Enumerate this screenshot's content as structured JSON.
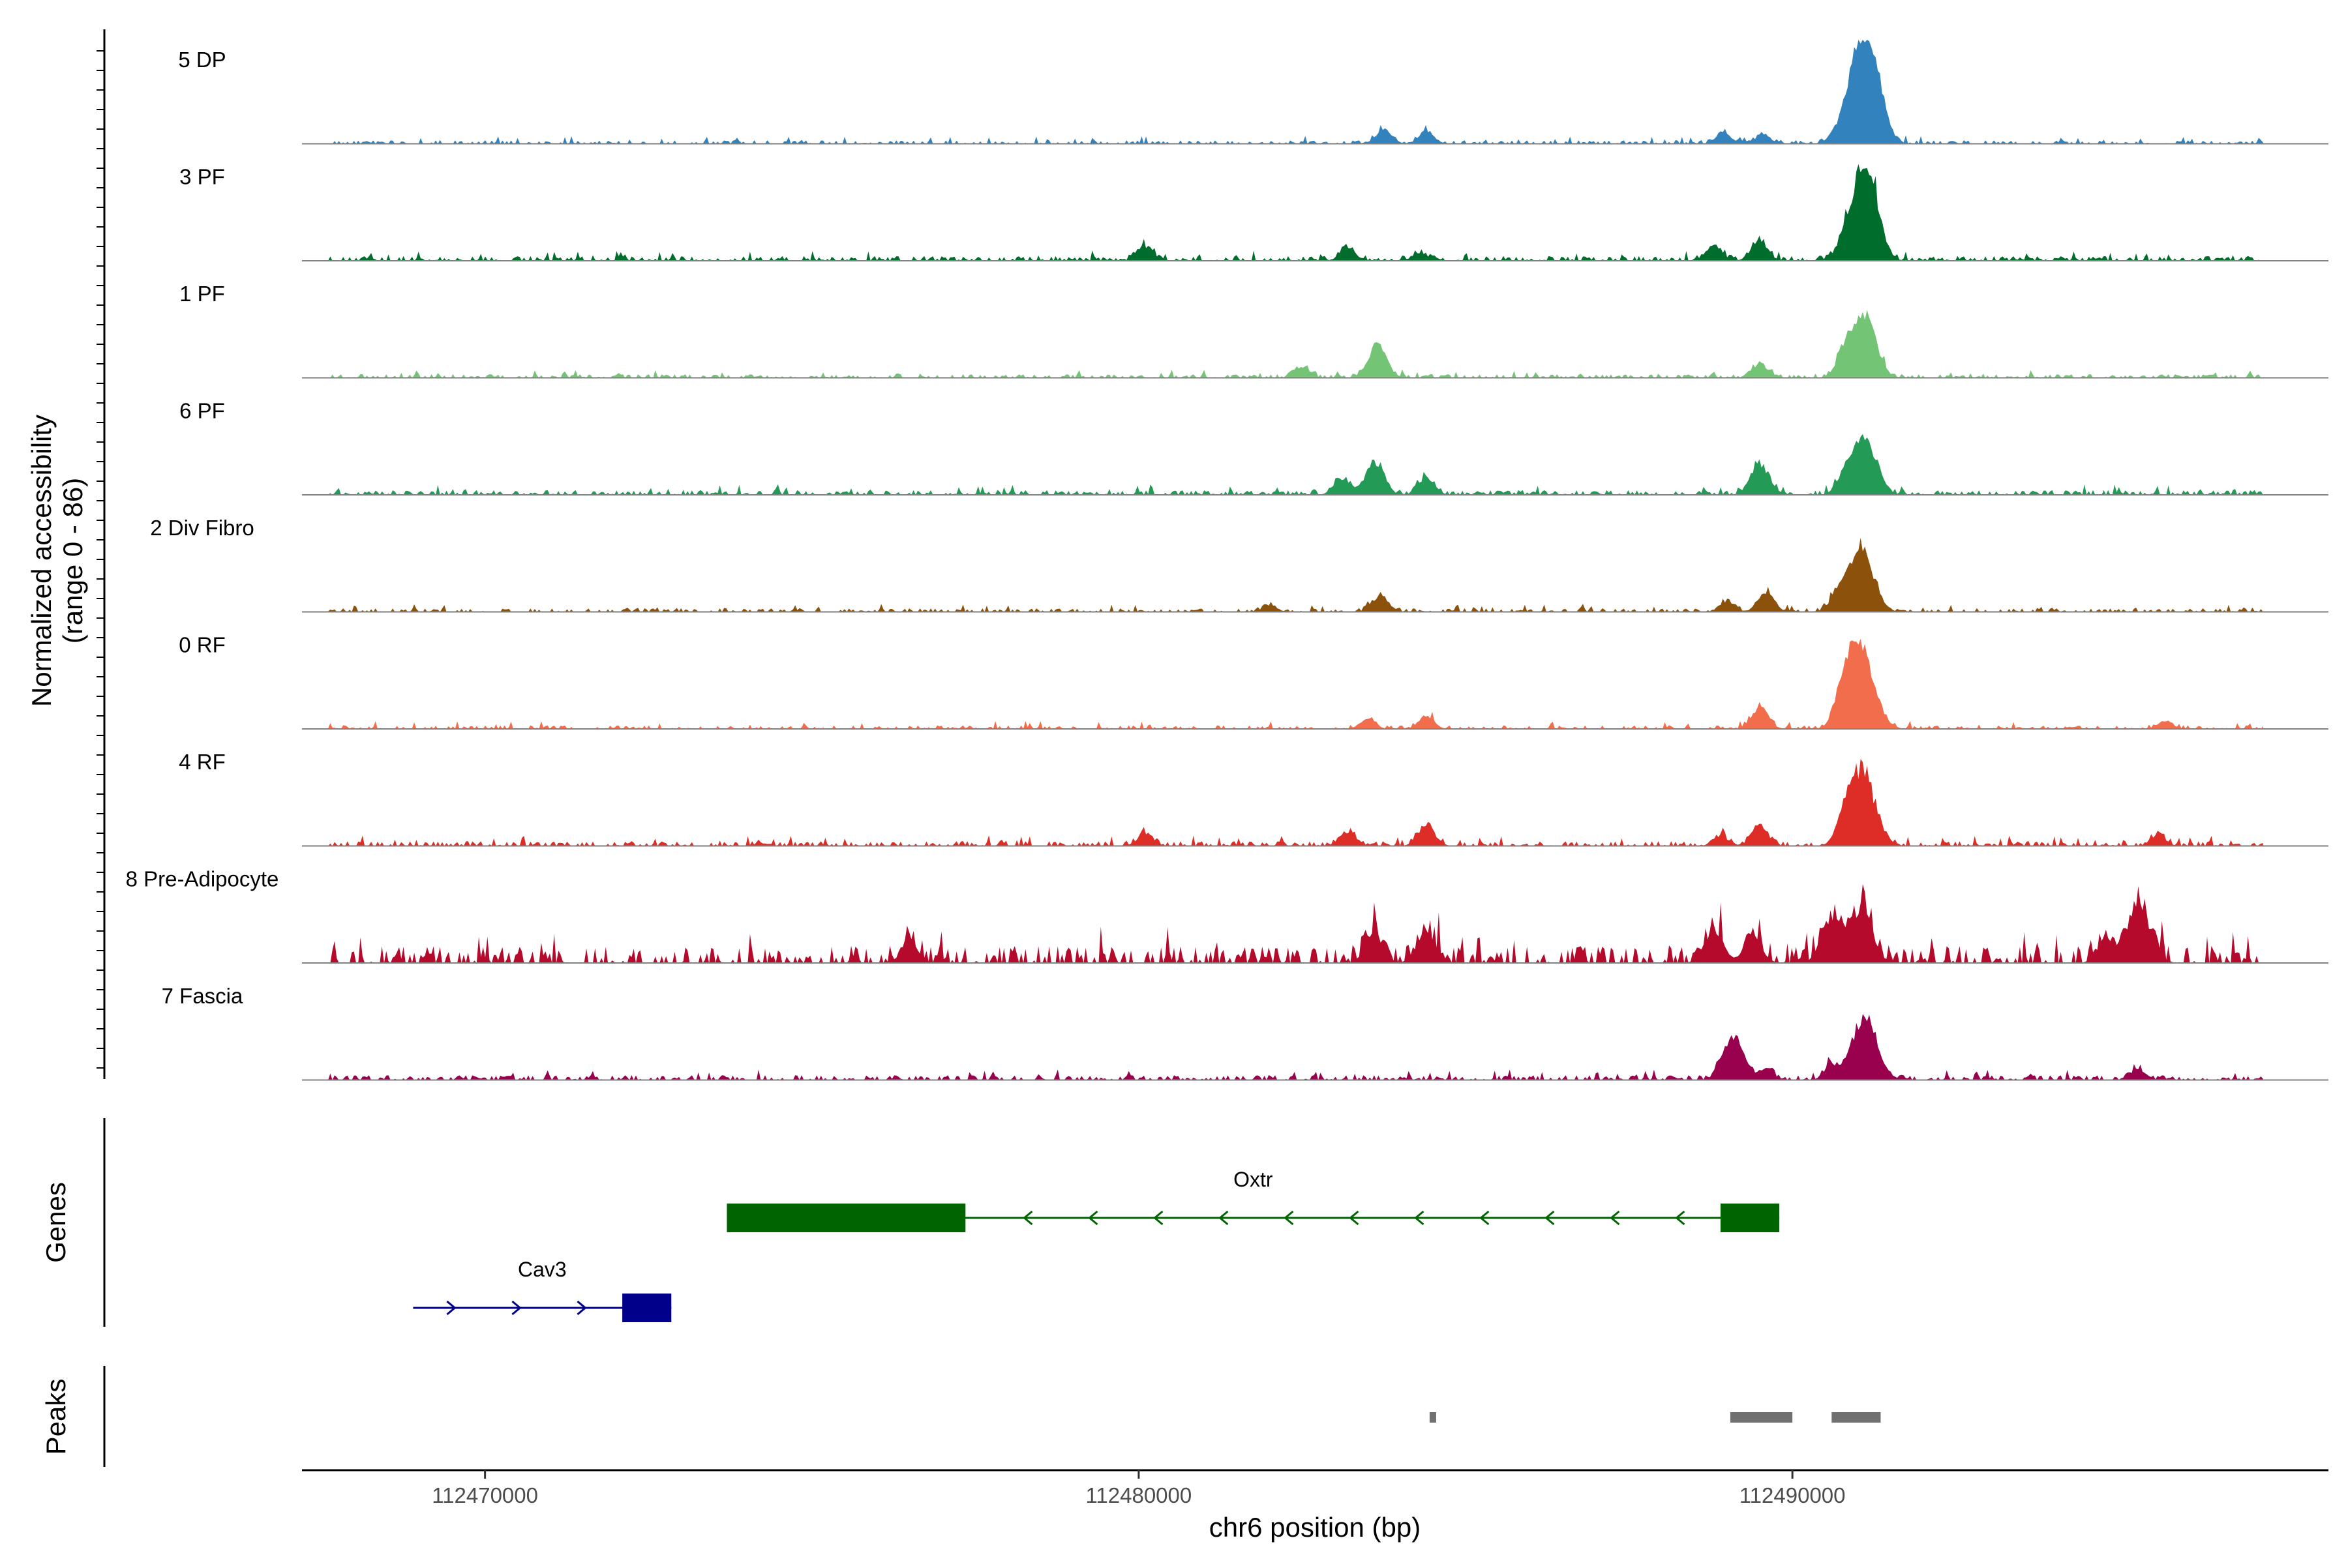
{
  "chart_data": {
    "type": "area",
    "title": "",
    "ylabel_line1": "Normalized accessibility",
    "ylabel_line2": "(range 0 - 86)",
    "y_range": [
      0,
      86
    ],
    "xlabel": "chr6 position (bp)",
    "chromosome": "chr6",
    "xlim": [
      112467200,
      112498200
    ],
    "xticks": [
      {
        "value": 112470000,
        "label": "112470000"
      },
      {
        "value": 112480000,
        "label": "112480000"
      },
      {
        "value": 112490000,
        "label": "112490000"
      }
    ],
    "tracks": [
      {
        "name": "5 DP",
        "color": "#3182bd",
        "peaks": [
          [
            112483750,
            14
          ],
          [
            112484400,
            12
          ],
          [
            112488950,
            10
          ],
          [
            112489550,
            9
          ],
          [
            112491050,
            86
          ],
          [
            112491250,
            30
          ]
        ],
        "noise": 3,
        "density": 0.55
      },
      {
        "name": "3 PF",
        "color": "#006d2c",
        "peaks": [
          [
            112480100,
            14
          ],
          [
            112483200,
            12
          ],
          [
            112484300,
            8
          ],
          [
            112488800,
            14
          ],
          [
            112489500,
            18
          ],
          [
            112491050,
            72
          ],
          [
            112491200,
            30
          ]
        ],
        "noise": 4,
        "density": 0.6
      },
      {
        "name": "1 PF",
        "color": "#74c476",
        "peaks": [
          [
            112483650,
            30
          ],
          [
            112482500,
            10
          ],
          [
            112489500,
            12
          ],
          [
            112490800,
            22
          ],
          [
            112491100,
            55
          ]
        ],
        "noise": 3,
        "density": 0.6
      },
      {
        "name": "6 PF",
        "color": "#239b56",
        "peaks": [
          [
            112483100,
            15
          ],
          [
            112483600,
            30
          ],
          [
            112484400,
            16
          ],
          [
            112489500,
            30
          ],
          [
            112490800,
            15
          ],
          [
            112491100,
            55
          ]
        ],
        "noise": 4,
        "density": 0.65
      },
      {
        "name": "2 Div Fibro",
        "color": "#8c510a",
        "peaks": [
          [
            112483700,
            16
          ],
          [
            112482000,
            6
          ],
          [
            112489000,
            10
          ],
          [
            112489600,
            18
          ],
          [
            112490700,
            15
          ],
          [
            112491050,
            60
          ]
        ],
        "noise": 3,
        "density": 0.55
      },
      {
        "name": "0 RF",
        "color": "#f26d4b",
        "peaks": [
          [
            112484400,
            12
          ],
          [
            112483500,
            10
          ],
          [
            112489500,
            20
          ],
          [
            112490800,
            28
          ],
          [
            112491050,
            74
          ],
          [
            112495700,
            8
          ]
        ],
        "noise": 3,
        "density": 0.45
      },
      {
        "name": "4 RF",
        "color": "#de2d26",
        "peaks": [
          [
            112480100,
            12
          ],
          [
            112483200,
            14
          ],
          [
            112484400,
            20
          ],
          [
            112488900,
            10
          ],
          [
            112489500,
            18
          ],
          [
            112490800,
            12
          ],
          [
            112491050,
            72
          ],
          [
            112495600,
            10
          ]
        ],
        "noise": 4,
        "density": 0.6
      },
      {
        "name": "8 Pre-Adipocyte",
        "color": "#b50a2c",
        "peaks": [
          [
            112484400,
            30
          ],
          [
            112483600,
            25
          ],
          [
            112476500,
            20
          ],
          [
            112488800,
            30
          ],
          [
            112489400,
            25
          ],
          [
            112490600,
            40
          ],
          [
            112491050,
            50
          ],
          [
            112495300,
            55
          ],
          [
            112494800,
            22
          ]
        ],
        "noise": 14,
        "density": 0.55
      },
      {
        "name": "7 Fascia",
        "color": "#99004d",
        "peaks": [
          [
            112489100,
            40
          ],
          [
            112490600,
            12
          ],
          [
            112491100,
            60
          ],
          [
            112489600,
            10
          ],
          [
            112495300,
            10
          ]
        ],
        "noise": 4,
        "density": 0.6
      }
    ],
    "genes_label": "Genes",
    "genes": [
      {
        "name": "Oxtr",
        "strand": "-",
        "color": "#006400",
        "start": 112473700,
        "end": 112489800,
        "exons": [
          [
            112473700,
            112477350
          ],
          [
            112488900,
            112489800
          ]
        ]
      },
      {
        "name": "Cav3",
        "strand": "+",
        "color": "#00008b",
        "start": 112468900,
        "end": 112472850,
        "exons": [
          [
            112472100,
            112472850
          ]
        ]
      }
    ],
    "peaks_label": "Peaks",
    "peak_regions": [
      [
        112484450,
        112484550
      ],
      [
        112489050,
        112490000
      ],
      [
        112490600,
        112491350
      ]
    ]
  }
}
